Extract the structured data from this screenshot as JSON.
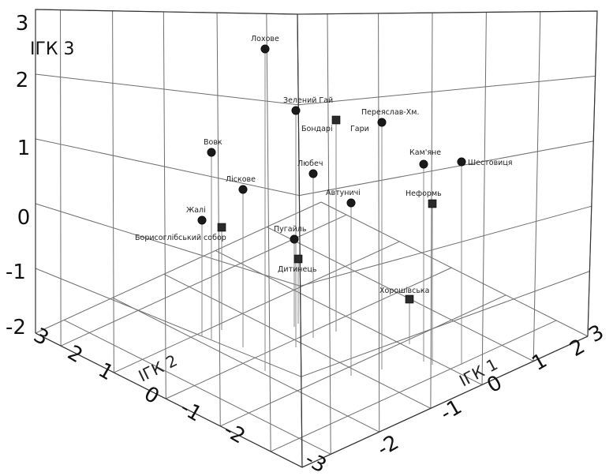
{
  "chart_data": {
    "type": "scatter",
    "title": "",
    "axes": {
      "x": {
        "label": "ІГК 1",
        "ticks": [
          "-2",
          "-1",
          "0",
          "1",
          "2",
          "3"
        ],
        "range": [
          -3,
          3
        ]
      },
      "y": {
        "label": "ІГК 2",
        "ticks": [
          "-3",
          "-2",
          "-1",
          "0",
          "1",
          "2",
          "3"
        ],
        "range": [
          -3,
          3
        ]
      },
      "z": {
        "label": "ІГК 3",
        "ticks": [
          "-2",
          "-1",
          "0",
          "1",
          "2",
          "3"
        ],
        "range": [
          -2,
          3
        ]
      }
    },
    "grid": true,
    "points": [
      {
        "label": "Лохове",
        "marker": "circle",
        "z": 2.55
      },
      {
        "label": "Зелений Гай",
        "marker": "circle",
        "z": 1.6
      },
      {
        "label": "Бондарі",
        "marker": "square",
        "z": 1.45
      },
      {
        "label": "Гари",
        "marker": "none",
        "z": 1.4
      },
      {
        "label": "Переяслав-Хм.",
        "marker": "circle",
        "z": 1.35
      },
      {
        "label": "Вовк",
        "marker": "circle",
        "z": 0.95
      },
      {
        "label": "Кам'яне",
        "marker": "circle",
        "z": 0.85
      },
      {
        "label": "Шестовиця",
        "marker": "circle",
        "z": 0.85
      },
      {
        "label": "Любеч",
        "marker": "circle",
        "z": 0.65
      },
      {
        "label": "Ліскове",
        "marker": "circle",
        "z": 0.4
      },
      {
        "label": "Автуничі",
        "marker": "circle",
        "z": 0.15
      },
      {
        "label": "Неформь",
        "marker": "square",
        "z": 0.15
      },
      {
        "label": "Жалі",
        "marker": "circle",
        "z": -0.05
      },
      {
        "label": "Борисоглібський собор",
        "marker": "square",
        "z": -0.2
      },
      {
        "label": "Пугайль",
        "marker": "circle",
        "z": -0.4
      },
      {
        "label": "Дитинець",
        "marker": "square",
        "z": -0.75
      },
      {
        "label": "Хорошівська",
        "marker": "square",
        "z": -1.35
      }
    ]
  }
}
